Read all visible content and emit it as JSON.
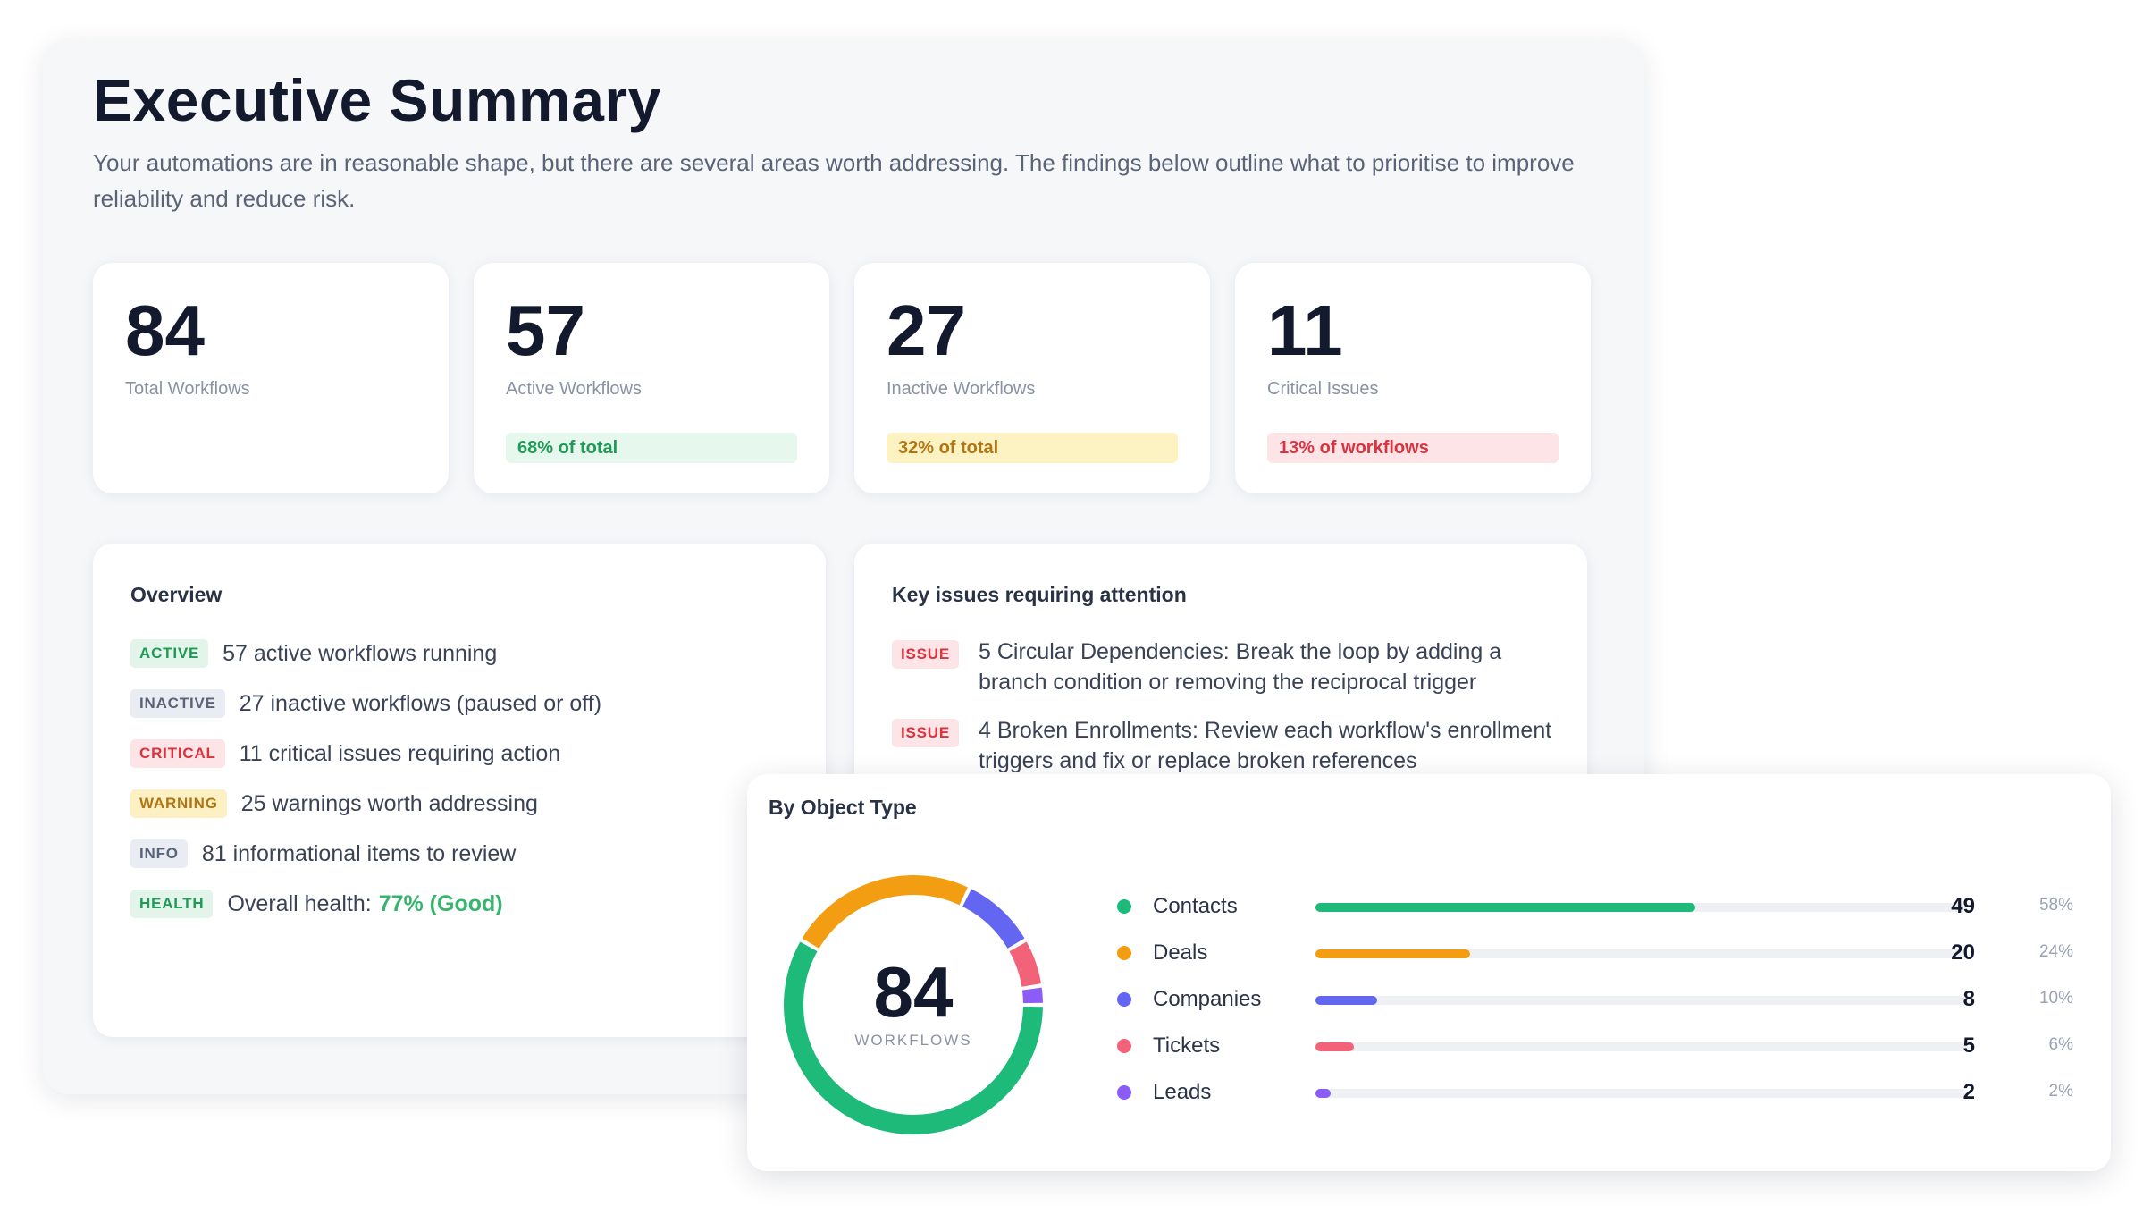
{
  "summary": {
    "title": "Executive Summary",
    "intro": "Your automations are in reasonable shape, but there are several areas worth addressing. The findings below outline what to prioritise to improve reliability and reduce risk."
  },
  "stats": [
    {
      "value": "84",
      "label": "Total Workflows",
      "pill": null
    },
    {
      "value": "57",
      "label": "Active Workflows",
      "pill": "68% of total",
      "pill_color": "#1f9a57"
    },
    {
      "value": "27",
      "label": "Inactive Workflows",
      "pill": "32% of total",
      "pill_color": "#b07514"
    },
    {
      "value": "11",
      "label": "Critical Issues",
      "pill": "13% of workflows",
      "pill_color": "#d8333f"
    }
  ],
  "overview": {
    "title": "Overview",
    "rows": [
      {
        "tag": "ACTIVE",
        "text": "57 active workflows running"
      },
      {
        "tag": "INACTIVE",
        "text": "27 inactive workflows (paused or off)"
      },
      {
        "tag": "CRITICAL",
        "text": "11 critical issues requiring action"
      },
      {
        "tag": "WARNING",
        "text": "25 warnings worth addressing"
      },
      {
        "tag": "INFO",
        "text": "81 informational items to review"
      },
      {
        "tag": "HEALTH",
        "text": "Overall health:",
        "value": "77% (Good)"
      }
    ]
  },
  "issues": {
    "title": "Key issues requiring attention",
    "rows": [
      {
        "tag": "ISSUE",
        "text": "5 Circular Dependencies: Break the loop by adding a branch condition or removing the reciprocal trigger"
      },
      {
        "tag": "ISSUE",
        "text": "4 Broken Enrollments: Review each workflow's enrollment triggers and fix or replace broken references"
      }
    ]
  },
  "by_object": {
    "title": "By Object Type",
    "total": "84",
    "total_label": "WORKFLOWS",
    "items": [
      {
        "name": "Contacts",
        "count": "49",
        "pct": "58%",
        "value": 49,
        "color": "#1dba7a"
      },
      {
        "name": "Deals",
        "count": "20",
        "pct": "24%",
        "value": 20,
        "color": "#f29d12"
      },
      {
        "name": "Companies",
        "count": "8",
        "pct": "10%",
        "value": 8,
        "color": "#6366f1"
      },
      {
        "name": "Tickets",
        "count": "5",
        "pct": "6%",
        "value": 5,
        "color": "#f2637a"
      },
      {
        "name": "Leads",
        "count": "2",
        "pct": "2%",
        "value": 2,
        "color": "#8b5cf6"
      }
    ]
  }
}
